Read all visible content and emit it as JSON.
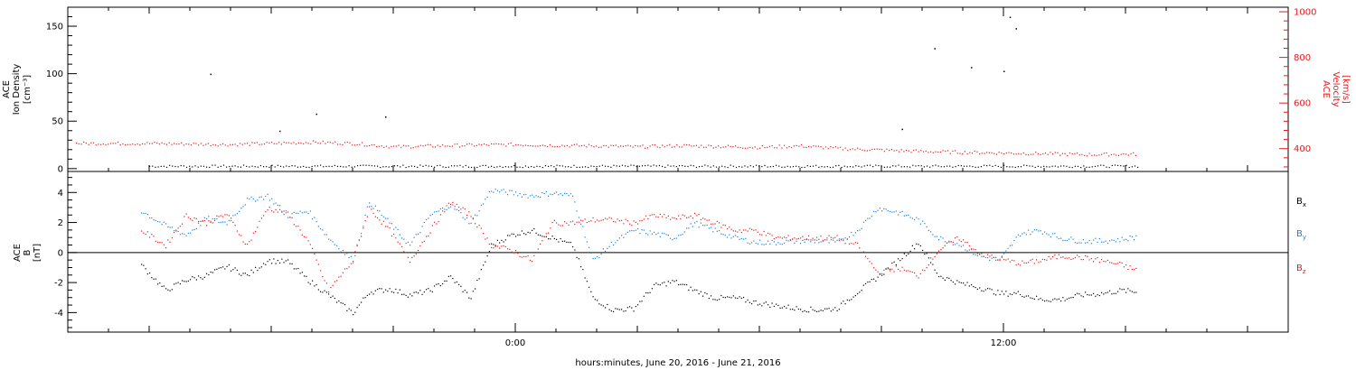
{
  "chart_data": [
    {
      "type": "scatter",
      "panel": "top",
      "ylabel_left": [
        "ACE",
        "Ion Density",
        "[cm⁻³]"
      ],
      "ylabel_right": [
        "ACE",
        "Velocity",
        "[km/s]"
      ],
      "ylim_left": [
        -3,
        170
      ],
      "ylim_right": [
        300,
        1020
      ],
      "yticks_left": [
        "0",
        "50",
        "100",
        "150"
      ],
      "yticks_right": [
        "400",
        "600",
        "800",
        "1000"
      ],
      "series": [
        {
          "axis": "left",
          "color": "#000000",
          "description_points": "density baseline ~3 with spikes",
          "x": [
            -7.5,
            -5.8,
            -4.9,
            -3.2,
            9.5,
            10.3,
            11.2,
            12.0,
            12.15,
            12.3
          ],
          "values": [
            100,
            40,
            58,
            55,
            42,
            127,
            107,
            103,
            160,
            148
          ]
        },
        {
          "axis": "right",
          "color": "#e8191c",
          "x": [
            -9,
            -7,
            -5,
            -4,
            -3,
            -1,
            0,
            1,
            2,
            3,
            4,
            5,
            6,
            7,
            8,
            9,
            10,
            11,
            12,
            13,
            14,
            15.3
          ],
          "values": [
            425,
            420,
            430,
            425,
            410,
            418,
            420,
            416,
            414,
            410,
            415,
            412,
            408,
            414,
            402,
            396,
            390,
            386,
            383,
            380,
            376,
            378
          ]
        }
      ]
    },
    {
      "type": "scatter",
      "panel": "bottom",
      "ylabel": [
        "ACE",
        "B",
        "[nT]"
      ],
      "ylim": [
        -5.3,
        5.4
      ],
      "yticks": [
        "-4",
        "-2",
        "0",
        "2",
        "4"
      ],
      "legend": [
        "Bx",
        "By",
        "Bz"
      ],
      "series": [
        {
          "color": "#000000",
          "x": [
            -9.2,
            -8.6,
            -8.1,
            -7.6,
            -7.1,
            -6.6,
            -6.1,
            -5.6,
            -5.1,
            -4.6,
            -4.0,
            -3.6,
            -3.1,
            -2.6,
            -2.1,
            -1.6,
            -1.1,
            -0.6,
            -0.1,
            0.4,
            0.9,
            1.4,
            1.9,
            2.4,
            2.9,
            3.4,
            3.9,
            4.4,
            4.9,
            5.4,
            5.9,
            6.4,
            6.9,
            7.4,
            7.9,
            8.4,
            8.9,
            9.4,
            9.9,
            10.4,
            10.9,
            11.4,
            11.9,
            12.4,
            12.9,
            13.4,
            13.9,
            14.4,
            14.9,
            15.3
          ],
          "values": [
            -0.8,
            -2.5,
            -1.8,
            -1.5,
            -0.9,
            -1.5,
            -0.5,
            -0.6,
            -1.8,
            -2.8,
            -4.0,
            -2.6,
            -2.4,
            -2.8,
            -2.5,
            -1.6,
            -3.0,
            0.5,
            1.2,
            1.5,
            1.0,
            0.5,
            -3.0,
            -3.8,
            -3.7,
            -2.2,
            -1.9,
            -2.5,
            -3.0,
            -3.0,
            -3.3,
            -3.5,
            -3.7,
            -3.8,
            -3.7,
            -2.6,
            -1.6,
            -0.5,
            0.7,
            -1.5,
            -2.0,
            -2.3,
            -2.7,
            -2.7,
            -3.1,
            -3.1,
            -2.8,
            -2.7,
            -2.5,
            -2.6
          ]
        },
        {
          "color": "#1a7fd4",
          "x": [
            -9.2,
            -8.6,
            -8.1,
            -7.6,
            -7.1,
            -6.6,
            -6.1,
            -5.6,
            -5.1,
            -4.6,
            -4.0,
            -3.6,
            -3.1,
            -2.6,
            -2.1,
            -1.6,
            -1.1,
            -0.6,
            -0.1,
            0.4,
            0.9,
            1.4,
            1.9,
            2.4,
            2.9,
            3.4,
            3.9,
            4.4,
            4.9,
            5.4,
            5.9,
            6.4,
            6.9,
            7.4,
            7.9,
            8.4,
            8.9,
            9.4,
            9.9,
            10.4,
            10.9,
            11.4,
            11.9,
            12.4,
            12.9,
            13.4,
            13.9,
            14.4,
            14.9,
            15.3
          ],
          "values": [
            2.8,
            1.8,
            1.2,
            2.3,
            2.0,
            3.5,
            3.8,
            2.5,
            2.8,
            1.0,
            -0.5,
            3.4,
            2.0,
            0.5,
            2.5,
            3.2,
            2.0,
            4.2,
            4.0,
            3.8,
            4.0,
            3.8,
            -0.5,
            0.7,
            1.5,
            1.3,
            1.0,
            2.0,
            1.5,
            1.0,
            0.7,
            0.7,
            0.8,
            0.8,
            0.7,
            1.5,
            3.0,
            2.7,
            2.2,
            1.0,
            0.6,
            -0.2,
            -0.5,
            1.3,
            1.5,
            1.0,
            0.8,
            0.8,
            0.9,
            1.1
          ]
        },
        {
          "color": "#e8191c",
          "x": [
            -9.2,
            -8.6,
            -8.1,
            -7.6,
            -7.1,
            -6.6,
            -6.1,
            -5.6,
            -5.1,
            -4.6,
            -4.0,
            -3.6,
            -3.1,
            -2.6,
            -2.1,
            -1.6,
            -1.1,
            -0.6,
            -0.1,
            0.4,
            0.9,
            1.4,
            1.9,
            2.4,
            2.9,
            3.4,
            3.9,
            4.4,
            4.9,
            5.4,
            5.9,
            6.4,
            6.9,
            7.4,
            7.9,
            8.4,
            8.9,
            9.4,
            9.9,
            10.4,
            10.9,
            11.4,
            11.9,
            12.4,
            12.9,
            13.4,
            13.9,
            14.4,
            14.9,
            15.3
          ],
          "values": [
            1.5,
            0.5,
            2.5,
            2.0,
            2.6,
            0.5,
            3.0,
            2.6,
            0.8,
            -2.5,
            -0.5,
            3.0,
            1.5,
            -0.5,
            1.5,
            3.4,
            2.5,
            0.5,
            0.2,
            -0.5,
            2.0,
            2.0,
            2.2,
            2.2,
            2.0,
            2.5,
            2.3,
            2.5,
            2.0,
            1.5,
            1.5,
            1.0,
            1.0,
            1.0,
            1.0,
            0.5,
            -1.3,
            -1.0,
            -1.5,
            0.2,
            1.0,
            0.0,
            -0.4,
            -0.7,
            -0.5,
            -0.2,
            -0.3,
            -0.5,
            -0.8,
            -1.2
          ]
        }
      ]
    }
  ],
  "x_axis": {
    "ticks": [
      {
        "hours": 0,
        "label": "0:00"
      },
      {
        "hours": 12,
        "label": "12:00"
      }
    ],
    "range_hours": [
      -11,
      19
    ],
    "title": "hours:minutes, June 20, 2016 - June 21, 2016"
  },
  "legend_labels": [
    {
      "base": "B",
      "sub": "x",
      "color": "#000000"
    },
    {
      "base": "B",
      "sub": "y",
      "color": "#1a7fd4"
    },
    {
      "base": "B",
      "sub": "z",
      "color": "#e8191c"
    }
  ]
}
